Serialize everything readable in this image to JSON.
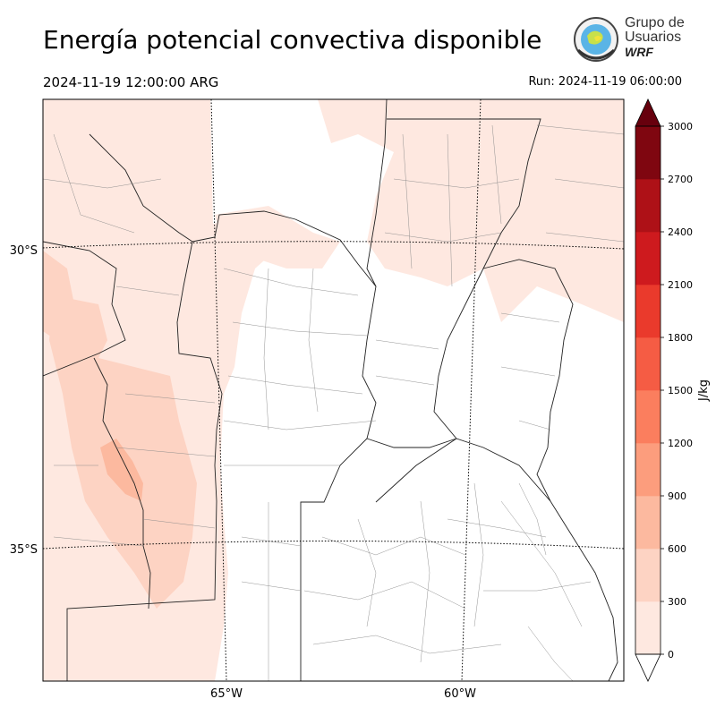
{
  "title": "Energía potencial convectiva disponible",
  "valid_time": "2024-11-19 12:00:00 ARG",
  "run_time": "Run: 2024-11-19 06:00:00",
  "logo": {
    "line1": "Grupo de",
    "line2": "Usuarios",
    "line3": "WRF"
  },
  "lat_labels": [
    "30°S",
    "35°S"
  ],
  "lon_labels": [
    "65°W",
    "60°W"
  ],
  "colorbar": {
    "unit_label": "J/kg",
    "ticks": [
      "0",
      "300",
      "600",
      "900",
      "1200",
      "1500",
      "1800",
      "2100",
      "2400",
      "2700",
      "3000"
    ],
    "colors": [
      "#fee8e0",
      "#fdd3c3",
      "#fcb99f",
      "#fc9d7d",
      "#fb7e5e",
      "#f55c44",
      "#ea3a2c",
      "#ce1a1e",
      "#ae1117",
      "#7f0610"
    ],
    "extend_color": "#67000d"
  }
}
